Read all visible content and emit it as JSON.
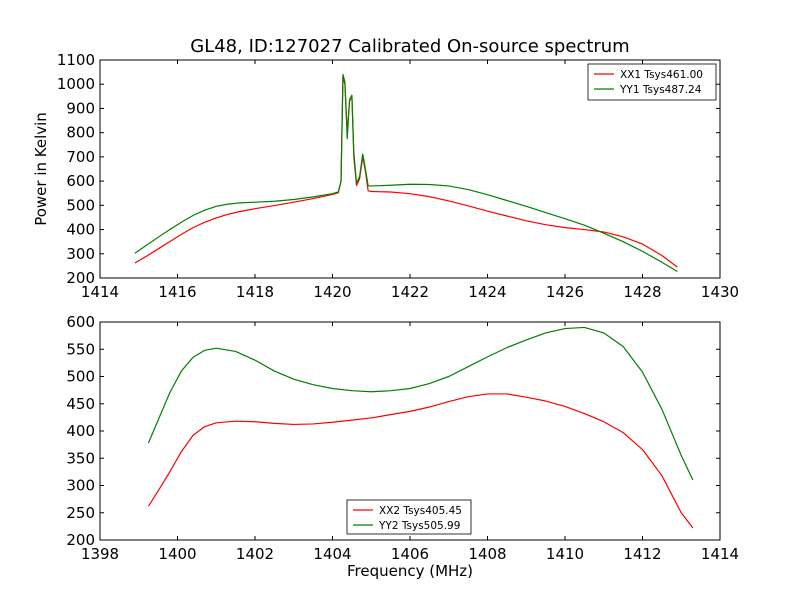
{
  "chart_data": [
    {
      "type": "line",
      "title": "GL48, ID:127027 Calibrated On-source spectrum",
      "xlabel": "",
      "ylabel": "Power in Kelvin",
      "xlim": [
        1414,
        1430
      ],
      "ylim": [
        200,
        1100
      ],
      "x_ticks": [
        1414,
        1416,
        1418,
        1420,
        1422,
        1424,
        1426,
        1428,
        1430
      ],
      "y_ticks": [
        200,
        300,
        400,
        500,
        600,
        700,
        800,
        900,
        1000,
        1100
      ],
      "legend_position": "top-right",
      "grid": false,
      "series": [
        {
          "name": "XX1 Tsys461.00",
          "color": "#ff0000",
          "points": [
            [
              1414.9,
              262
            ],
            [
              1415.2,
              290
            ],
            [
              1415.5,
              320
            ],
            [
              1415.8,
              350
            ],
            [
              1416.1,
              380
            ],
            [
              1416.4,
              408
            ],
            [
              1416.7,
              430
            ],
            [
              1417,
              448
            ],
            [
              1417.3,
              463
            ],
            [
              1417.6,
              474
            ],
            [
              1418,
              486
            ],
            [
              1418.5,
              499
            ],
            [
              1419,
              513
            ],
            [
              1419.5,
              528
            ],
            [
              1420,
              545
            ],
            [
              1420.15,
              552
            ],
            [
              1420.22,
              600
            ],
            [
              1420.27,
              1030
            ],
            [
              1420.32,
              1000
            ],
            [
              1420.38,
              800
            ],
            [
              1420.44,
              930
            ],
            [
              1420.5,
              950
            ],
            [
              1420.55,
              700
            ],
            [
              1420.62,
              582
            ],
            [
              1420.7,
              610
            ],
            [
              1420.78,
              700
            ],
            [
              1420.85,
              640
            ],
            [
              1420.92,
              560
            ],
            [
              1421,
              557
            ],
            [
              1421.5,
              555
            ],
            [
              1422,
              548
            ],
            [
              1422.5,
              536
            ],
            [
              1423,
              518
            ],
            [
              1423.5,
              498
            ],
            [
              1424,
              476
            ],
            [
              1424.5,
              456
            ],
            [
              1425,
              436
            ],
            [
              1425.5,
              420
            ],
            [
              1426,
              408
            ],
            [
              1426.5,
              400
            ],
            [
              1427,
              390
            ],
            [
              1427.5,
              370
            ],
            [
              1428,
              340
            ],
            [
              1428.5,
              293
            ],
            [
              1428.9,
              245
            ]
          ]
        },
        {
          "name": "YY1 Tsys487.24",
          "color": "#008000",
          "points": [
            [
              1414.9,
              302
            ],
            [
              1415.2,
              335
            ],
            [
              1415.5,
              368
            ],
            [
              1415.8,
              400
            ],
            [
              1416.1,
              430
            ],
            [
              1416.4,
              458
            ],
            [
              1416.7,
              480
            ],
            [
              1417,
              496
            ],
            [
              1417.3,
              505
            ],
            [
              1417.6,
              510
            ],
            [
              1418,
              513
            ],
            [
              1418.5,
              517
            ],
            [
              1419,
              524
            ],
            [
              1419.5,
              535
            ],
            [
              1420,
              548
            ],
            [
              1420.15,
              555
            ],
            [
              1420.22,
              600
            ],
            [
              1420.27,
              1040
            ],
            [
              1420.32,
              1010
            ],
            [
              1420.38,
              775
            ],
            [
              1420.44,
              935
            ],
            [
              1420.5,
              955
            ],
            [
              1420.55,
              720
            ],
            [
              1420.62,
              590
            ],
            [
              1420.7,
              620
            ],
            [
              1420.78,
              712
            ],
            [
              1420.85,
              650
            ],
            [
              1420.92,
              580
            ],
            [
              1421,
              580
            ],
            [
              1421.5,
              583
            ],
            [
              1422,
              587
            ],
            [
              1422.5,
              586
            ],
            [
              1423,
              580
            ],
            [
              1423.5,
              565
            ],
            [
              1424,
              544
            ],
            [
              1424.5,
              520
            ],
            [
              1425,
              496
            ],
            [
              1425.5,
              470
            ],
            [
              1426,
              445
            ],
            [
              1426.5,
              418
            ],
            [
              1427,
              385
            ],
            [
              1427.5,
              350
            ],
            [
              1428,
              310
            ],
            [
              1428.5,
              265
            ],
            [
              1428.9,
              227
            ]
          ]
        }
      ]
    },
    {
      "type": "line",
      "title": "",
      "xlabel": "Frequency (MHz)",
      "ylabel": "",
      "xlim": [
        1398,
        1414
      ],
      "ylim": [
        200,
        600
      ],
      "x_ticks": [
        1398,
        1400,
        1402,
        1404,
        1406,
        1408,
        1410,
        1412,
        1414
      ],
      "y_ticks": [
        200,
        250,
        300,
        350,
        400,
        450,
        500,
        550,
        600
      ],
      "legend_position": "bottom-center",
      "grid": false,
      "series": [
        {
          "name": "XX2 Tsys405.45",
          "color": "#ff0000",
          "points": [
            [
              1399.25,
              262
            ],
            [
              1399.5,
              290
            ],
            [
              1399.8,
              325
            ],
            [
              1400.1,
              362
            ],
            [
              1400.4,
              392
            ],
            [
              1400.7,
              408
            ],
            [
              1401,
              415
            ],
            [
              1401.5,
              418
            ],
            [
              1402,
              417
            ],
            [
              1402.5,
              414
            ],
            [
              1403,
              412
            ],
            [
              1403.5,
              413
            ],
            [
              1404,
              416
            ],
            [
              1404.5,
              420
            ],
            [
              1405,
              424
            ],
            [
              1405.5,
              430
            ],
            [
              1406,
              436
            ],
            [
              1406.5,
              444
            ],
            [
              1407,
              454
            ],
            [
              1407.5,
              463
            ],
            [
              1408,
              468
            ],
            [
              1408.5,
              468
            ],
            [
              1409,
              462
            ],
            [
              1409.5,
              455
            ],
            [
              1410,
              445
            ],
            [
              1410.5,
              432
            ],
            [
              1411,
              417
            ],
            [
              1411.5,
              397
            ],
            [
              1412,
              366
            ],
            [
              1412.5,
              318
            ],
            [
              1413,
              250
            ],
            [
              1413.3,
              222
            ]
          ]
        },
        {
          "name": "YY2 Tsys505.99",
          "color": "#008000",
          "points": [
            [
              1399.25,
              378
            ],
            [
              1399.5,
              420
            ],
            [
              1399.8,
              470
            ],
            [
              1400.1,
              510
            ],
            [
              1400.4,
              535
            ],
            [
              1400.7,
              548
            ],
            [
              1401,
              552
            ],
            [
              1401.5,
              546
            ],
            [
              1402,
              530
            ],
            [
              1402.5,
              510
            ],
            [
              1403,
              495
            ],
            [
              1403.5,
              485
            ],
            [
              1404,
              478
            ],
            [
              1404.5,
              474
            ],
            [
              1405,
              472
            ],
            [
              1405.5,
              474
            ],
            [
              1406,
              478
            ],
            [
              1406.5,
              487
            ],
            [
              1407,
              500
            ],
            [
              1407.5,
              518
            ],
            [
              1408,
              536
            ],
            [
              1408.5,
              553
            ],
            [
              1409,
              567
            ],
            [
              1409.5,
              580
            ],
            [
              1410,
              588
            ],
            [
              1410.5,
              590
            ],
            [
              1411,
              580
            ],
            [
              1411.5,
              555
            ],
            [
              1412,
              508
            ],
            [
              1412.5,
              440
            ],
            [
              1413,
              355
            ],
            [
              1413.3,
              310
            ]
          ]
        }
      ]
    }
  ]
}
